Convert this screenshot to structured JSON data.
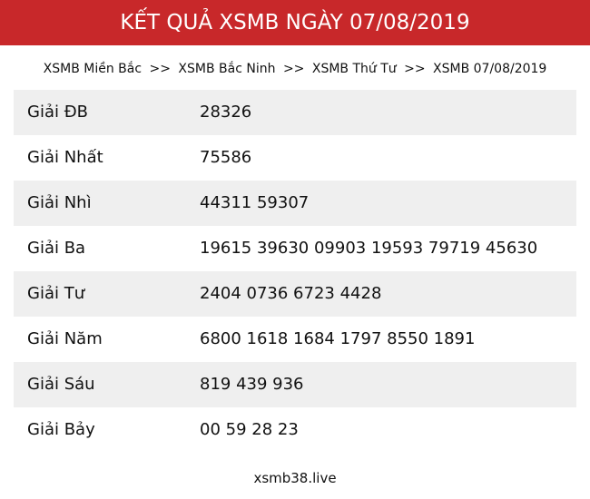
{
  "header": {
    "title": "KẾT QUẢ XSMB NGÀY 07/08/2019",
    "color": "#c8282a"
  },
  "breadcrumb": {
    "items": [
      "XSMB Miền Bắc",
      "XSMB Bắc Ninh",
      "XSMB Thứ Tư",
      "XSMB 07/08/2019"
    ],
    "separator": ">>"
  },
  "results": [
    {
      "label": "Giải ĐB",
      "value": "28326"
    },
    {
      "label": "Giải Nhất",
      "value": "75586"
    },
    {
      "label": "Giải Nhì",
      "value": "44311 59307"
    },
    {
      "label": "Giải Ba",
      "value": "19615 39630 09903 19593 79719 45630"
    },
    {
      "label": "Giải Tư",
      "value": "2404 0736 6723 4428"
    },
    {
      "label": "Giải Năm",
      "value": "6800 1618 1684 1797 8550 1891"
    },
    {
      "label": "Giải Sáu",
      "value": "819 439 936"
    },
    {
      "label": "Giải Bảy",
      "value": "00 59 28 23"
    }
  ],
  "footer": {
    "site": "xsmb38.live"
  }
}
